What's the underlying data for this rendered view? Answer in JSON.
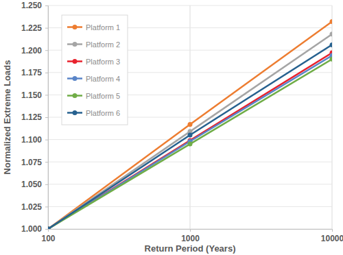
{
  "chart_data": {
    "type": "line",
    "x_label": "Return Period (Years)",
    "y_label": "Normalized Extreme Loads",
    "x": [
      100,
      1000,
      10000
    ],
    "series": [
      {
        "name": "Platform 1",
        "color": "#ed7d31",
        "values": [
          1.0,
          1.117,
          1.232
        ]
      },
      {
        "name": "Platform 2",
        "color": "#a5a5a5",
        "values": [
          1.0,
          1.109,
          1.218
        ]
      },
      {
        "name": "Platform 3",
        "color": "#e8222d",
        "values": [
          1.0,
          1.099,
          1.197
        ]
      },
      {
        "name": "Platform 4",
        "color": "#5a85c8",
        "values": [
          1.0,
          1.098,
          1.194
        ]
      },
      {
        "name": "Platform 5",
        "color": "#70ad47",
        "values": [
          1.0,
          1.095,
          1.19
        ]
      },
      {
        "name": "Platform 6",
        "color": "#26618f",
        "values": [
          1.0,
          1.105,
          1.206
        ]
      }
    ],
    "xlim": [
      100,
      10000
    ],
    "xticks": [
      100,
      1000,
      10000
    ],
    "ylim": [
      1.0,
      1.25
    ],
    "yticks": [
      {
        "value": 1.0,
        "label": "1.000"
      },
      {
        "value": 1.025,
        "label": "1.025"
      },
      {
        "value": 1.05,
        "label": "1.050"
      },
      {
        "value": 1.075,
        "label": "1.075"
      },
      {
        "value": 1.1,
        "label": "1.100"
      },
      {
        "value": 1.125,
        "label": "1.125"
      },
      {
        "value": 1.15,
        "label": "1.150"
      },
      {
        "value": 1.175,
        "label": "1.175"
      },
      {
        "value": 1.2,
        "label": "1.200"
      },
      {
        "value": 1.225,
        "label": "1.225"
      },
      {
        "value": 1.25,
        "label": "1.250"
      }
    ],
    "log": "x",
    "grid": true,
    "legend": "upper-left",
    "marker": "circle"
  }
}
